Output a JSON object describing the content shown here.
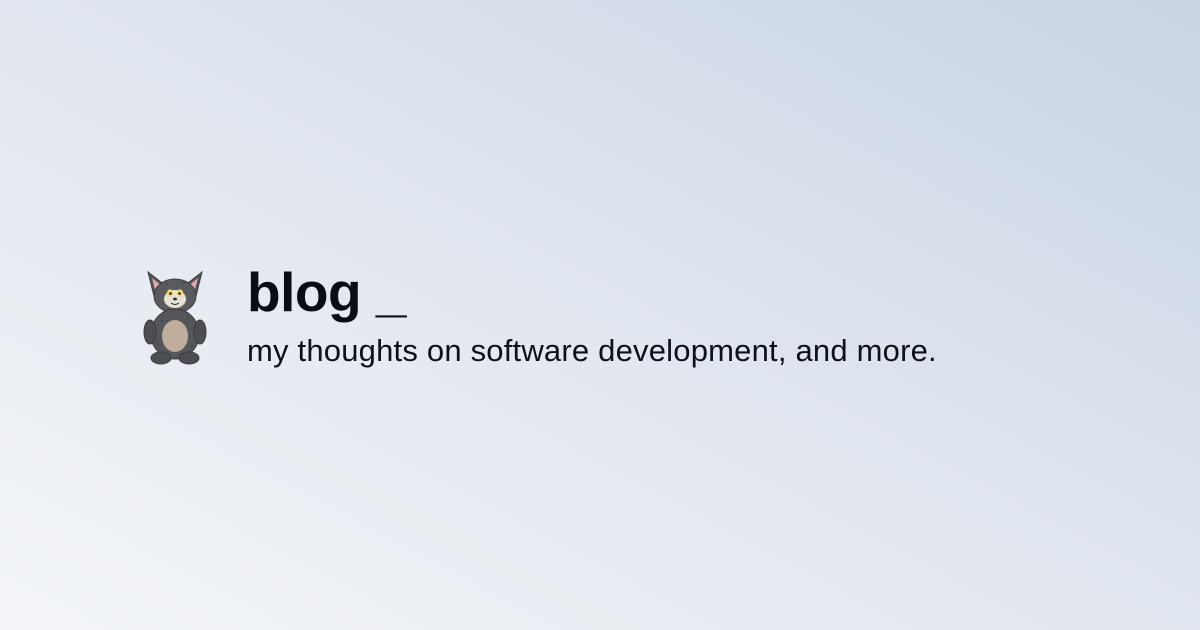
{
  "header": {
    "title": "blog _",
    "tagline": "my thoughts on software development, and more."
  },
  "avatar": {
    "icon": "cat-mascot-icon"
  },
  "colors": {
    "background_light": "#f3f5f8",
    "background_dark": "#c9d4e4",
    "text": "#0a0d14",
    "cat_fur": "#55565a",
    "cat_belly": "#bfae9c",
    "cat_ear_inner": "#e7a8ad",
    "cat_eye": "#f2dc5a"
  }
}
